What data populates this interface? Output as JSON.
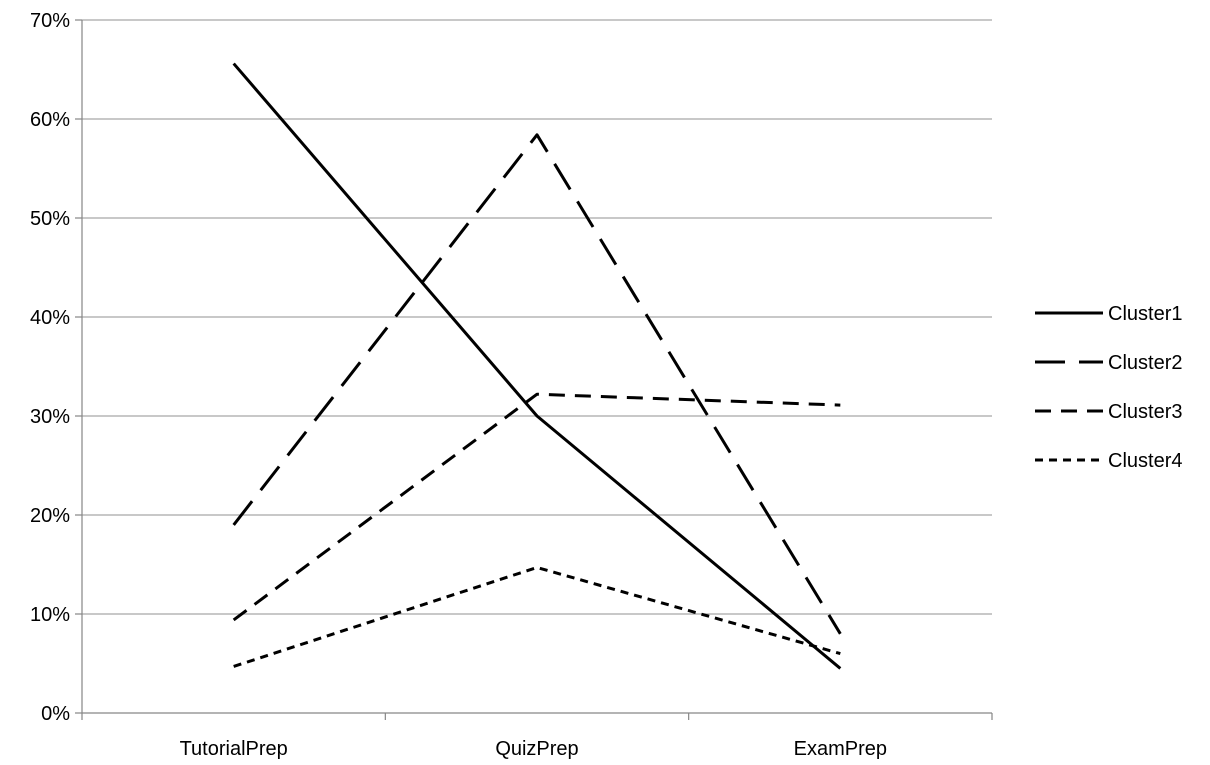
{
  "chart_data": {
    "type": "line",
    "categories": [
      "TutorialPrep",
      "QuizPrep",
      "ExamPrep"
    ],
    "y_tick_labels": [
      "0%",
      "10%",
      "20%",
      "30%",
      "40%",
      "50%",
      "60%",
      "70%"
    ],
    "ylim": [
      0,
      70
    ],
    "grid": true,
    "legend_position": "right",
    "series": [
      {
        "name": "Cluster1",
        "values": [
          65.6,
          30.0,
          4.5
        ],
        "dash": "solid"
      },
      {
        "name": "Cluster2",
        "values": [
          19.0,
          58.4,
          8.0
        ],
        "dash": "long-dash"
      },
      {
        "name": "Cluster3",
        "values": [
          9.4,
          32.2,
          31.1
        ],
        "dash": "dash"
      },
      {
        "name": "Cluster4",
        "values": [
          4.7,
          14.7,
          6.0
        ],
        "dash": "short-dash"
      }
    ],
    "colors": {
      "line": "#000000",
      "grid": "#a6a6a6",
      "axis": "#868686"
    }
  }
}
